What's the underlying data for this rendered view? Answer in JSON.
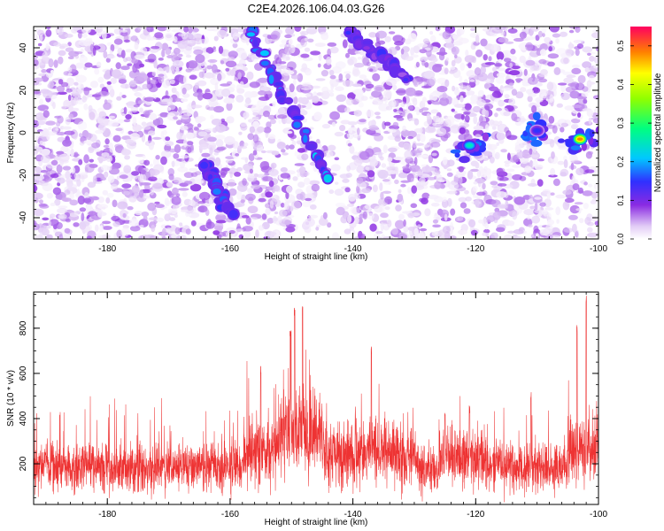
{
  "title": "C2E4.2026.106.04.03.G26",
  "colors": {
    "snr_line": "#ee3333",
    "axis": "#000000",
    "background": "#ffffff"
  },
  "chart_data": [
    {
      "type": "heatmap",
      "name": "spectrogram",
      "xlabel": "Height of straight line (km)",
      "ylabel": "Frequency (Hz)",
      "xlim": [
        -192,
        -100
      ],
      "ylim": [
        -50,
        50
      ],
      "x_ticks": [
        -180,
        -160,
        -140,
        -120,
        -100
      ],
      "y_ticks": [
        -40,
        -20,
        0,
        20,
        40
      ],
      "colorbar": {
        "label": "Normalized spectral amplitude",
        "range": [
          0.0,
          0.55
        ],
        "ticks": [
          0.0,
          0.1,
          0.2,
          0.3,
          0.4,
          0.5
        ],
        "tick_labels": [
          "0.0",
          "0.1",
          "0.2",
          "0.3",
          "0.4",
          "0.5"
        ]
      },
      "features": [
        {
          "name": "main-streak",
          "from": [
            -157,
            48
          ],
          "to": [
            -144,
            -22
          ],
          "peak_amplitude": 0.22
        },
        {
          "name": "upper-streak",
          "from": [
            -141,
            48
          ],
          "to": [
            -131,
            25
          ],
          "peak_amplitude": 0.15
        },
        {
          "name": "short-streak-left",
          "from": [
            -164,
            -15
          ],
          "to": [
            -160,
            -38
          ],
          "peak_amplitude": 0.18
        },
        {
          "name": "cluster-mid",
          "center": [
            -121,
            -6
          ],
          "peak_amplitude": 0.25
        },
        {
          "name": "cluster-right",
          "center": [
            -103,
            -3
          ],
          "peak_amplitude": 0.48
        },
        {
          "name": "cluster-right-small",
          "center": [
            -110,
            1
          ],
          "peak_amplitude": 0.15
        }
      ]
    },
    {
      "type": "line",
      "name": "snr",
      "xlabel": "Height of straight line (km)",
      "ylabel": "SNR (10 * v/v)",
      "xlim": [
        -192,
        -100
      ],
      "ylim": [
        20,
        960
      ],
      "x_ticks": [
        -180,
        -160,
        -140,
        -120,
        -100
      ],
      "y_ticks": [
        200,
        400,
        600,
        800
      ],
      "baseline_mean": 185,
      "peaks": [
        {
          "x": -149.5,
          "y": 890
        },
        {
          "x": -148.2,
          "y": 910
        },
        {
          "x": -150.2,
          "y": 800
        },
        {
          "x": -155,
          "y": 640
        },
        {
          "x": -137,
          "y": 720
        },
        {
          "x": -102,
          "y": 950
        },
        {
          "x": -103.5,
          "y": 820
        },
        {
          "x": -121,
          "y": 460
        },
        {
          "x": -111,
          "y": 520
        },
        {
          "x": -125,
          "y": 430
        }
      ]
    }
  ]
}
